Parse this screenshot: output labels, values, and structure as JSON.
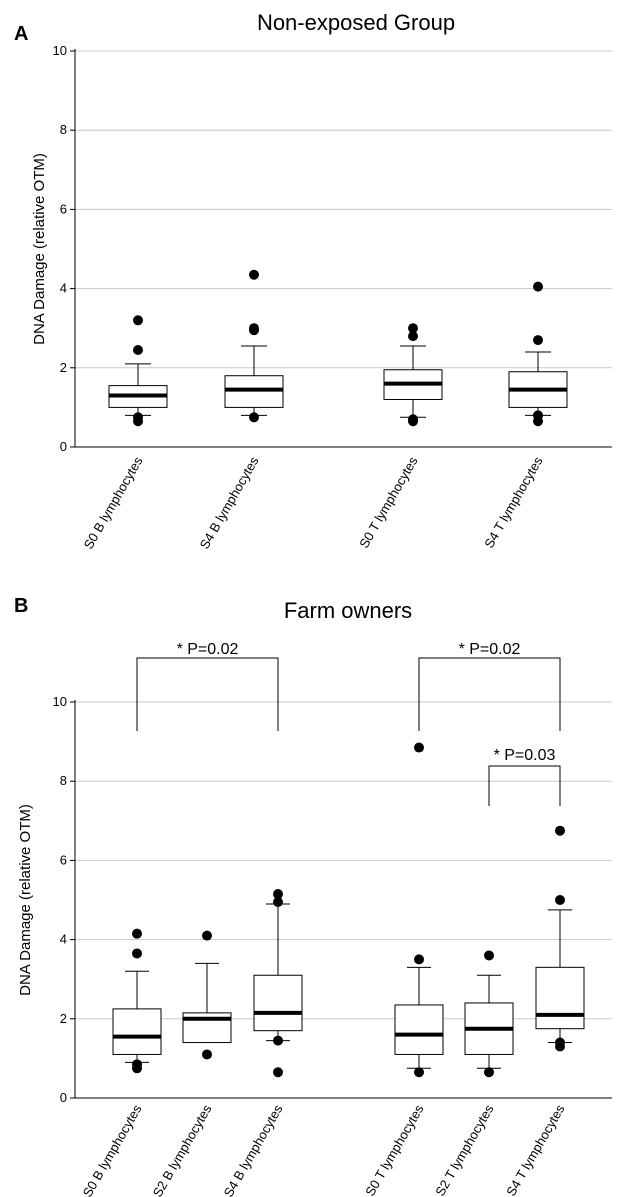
{
  "chart_data": [
    {
      "type": "box",
      "panel_label": "A",
      "title": "Non-exposed Group",
      "ylabel": "DNA Damage (relative OTM)",
      "ylim": [
        0,
        10
      ],
      "yticks": [
        0,
        2,
        4,
        6,
        8,
        10
      ],
      "grid": true,
      "categories": [
        "S0 B lymphocytes",
        "S4 B lymphocytes",
        "S0 T lymphocytes",
        "S4 T lymphocytes"
      ],
      "boxes": [
        {
          "category": "S0 B lymphocytes",
          "whisker_low": 0.8,
          "q1": 1.0,
          "median": 1.3,
          "q3": 1.55,
          "whisker_high": 2.1,
          "outliers": [
            0.65,
            0.75,
            2.45,
            3.2
          ]
        },
        {
          "category": "S4 B lymphocytes",
          "whisker_low": 0.8,
          "q1": 1.0,
          "median": 1.45,
          "q3": 1.8,
          "whisker_high": 2.55,
          "outliers": [
            0.75,
            2.95,
            3.0,
            4.35
          ]
        },
        {
          "category": "S0 T lymphocytes",
          "whisker_low": 0.75,
          "q1": 1.2,
          "median": 1.6,
          "q3": 1.95,
          "whisker_high": 2.55,
          "outliers": [
            0.65,
            0.7,
            2.8,
            3.0
          ]
        },
        {
          "category": "S4 T lymphocytes",
          "whisker_low": 0.8,
          "q1": 1.0,
          "median": 1.45,
          "q3": 1.9,
          "whisker_high": 2.4,
          "outliers": [
            0.65,
            0.8,
            2.7,
            4.05
          ]
        }
      ]
    },
    {
      "type": "box",
      "panel_label": "B",
      "title": "Farm owners",
      "ylabel": "DNA Damage (relative OTM)",
      "ylim": [
        0,
        10
      ],
      "yticks": [
        0,
        2,
        4,
        6,
        8,
        10
      ],
      "grid": true,
      "categories": [
        "S0 B lymphocytes",
        "S2 B lymphocytes",
        "S4 B lymphocytes",
        "S0 T lymphocytes",
        "S2 T lymphocytes",
        "S4 T lymphocytes"
      ],
      "boxes": [
        {
          "category": "S0 B lymphocytes",
          "whisker_low": 0.9,
          "q1": 1.1,
          "median": 1.55,
          "q3": 2.25,
          "whisker_high": 3.2,
          "outliers": [
            0.75,
            0.85,
            3.65,
            4.15
          ]
        },
        {
          "category": "S2 B lymphocytes",
          "whisker_low": 1.4,
          "q1": 1.4,
          "median": 2.0,
          "q3": 2.15,
          "whisker_high": 3.4,
          "outliers": [
            1.1,
            4.1
          ]
        },
        {
          "category": "S4 B lymphocytes",
          "whisker_low": 1.45,
          "q1": 1.7,
          "median": 2.15,
          "q3": 3.1,
          "whisker_high": 4.9,
          "outliers": [
            0.65,
            1.45,
            4.95,
            5.15
          ]
        },
        {
          "category": "S0 T lymphocytes",
          "whisker_low": 0.75,
          "q1": 1.1,
          "median": 1.6,
          "q3": 2.35,
          "whisker_high": 3.3,
          "outliers": [
            0.65,
            3.5,
            8.85
          ]
        },
        {
          "category": "S2 T lymphocytes",
          "whisker_low": 0.75,
          "q1": 1.1,
          "median": 1.75,
          "q3": 2.4,
          "whisker_high": 3.1,
          "outliers": [
            0.65,
            3.6
          ]
        },
        {
          "category": "S4 T lymphocytes",
          "whisker_low": 1.4,
          "q1": 1.75,
          "median": 2.1,
          "q3": 3.3,
          "whisker_high": 4.75,
          "outliers": [
            1.3,
            1.4,
            5.0,
            6.75
          ]
        }
      ],
      "annotations": [
        {
          "text": "* P=0.02",
          "from": "S0 B lymphocytes",
          "to": "S4 B lymphocytes"
        },
        {
          "text": "* P=0.02",
          "from": "S0 T lymphocytes",
          "to": "S4 T lymphocytes"
        },
        {
          "text": "* P=0.03",
          "from": "S2 T lymphocytes",
          "to": "S4 T lymphocytes"
        }
      ]
    }
  ]
}
